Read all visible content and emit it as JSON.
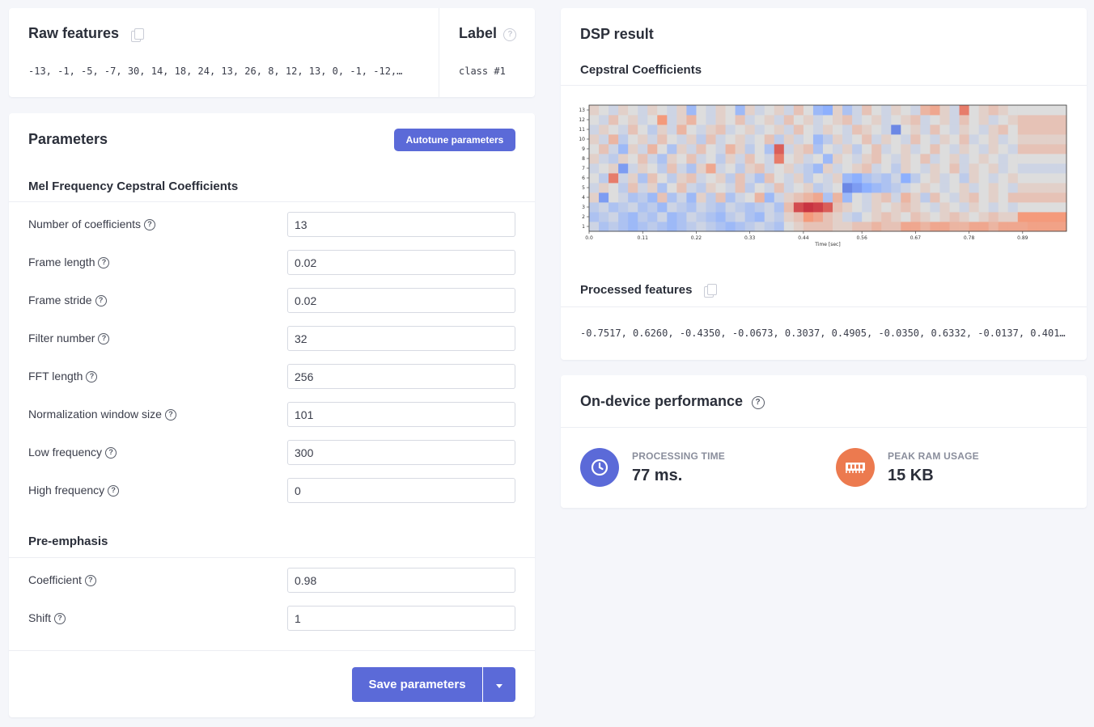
{
  "raw_features": {
    "title": "Raw features",
    "values": "-13, -1, -5, -7, 30, 14, 18, 24, 13, 26, 8, 12, 13, 0, -1, -12,…"
  },
  "label": {
    "title": "Label",
    "value": "class #1"
  },
  "parameters": {
    "title": "Parameters",
    "autotune_label": "Autotune parameters",
    "mfcc_section": "Mel Frequency Cepstral Coefficients",
    "mfcc_fields": [
      {
        "label": "Number of coefficients",
        "value": "13"
      },
      {
        "label": "Frame length",
        "value": "0.02"
      },
      {
        "label": "Frame stride",
        "value": "0.02"
      },
      {
        "label": "Filter number",
        "value": "32"
      },
      {
        "label": "FFT length",
        "value": "256"
      },
      {
        "label": "Normalization window size",
        "value": "101"
      },
      {
        "label": "Low frequency",
        "value": "300"
      },
      {
        "label": "High frequency",
        "value": "0"
      }
    ],
    "preemph_section": "Pre-emphasis",
    "preemph_fields": [
      {
        "label": "Coefficient",
        "value": "0.98"
      },
      {
        "label": "Shift",
        "value": "1"
      }
    ],
    "save_label": "Save parameters"
  },
  "dsp": {
    "title": "DSP result",
    "chart_title": "Cepstral Coefficients",
    "processed_title": "Processed features",
    "processed_values": "-0.7517, 0.6260, -0.4350, -0.0673, 0.3037, 0.4905, -0.0350, 0.6332, -0.0137, 0.401…"
  },
  "performance": {
    "title": "On-device performance",
    "processing_label": "PROCESSING TIME",
    "processing_value": "77 ms.",
    "ram_label": "PEAK RAM USAGE",
    "ram_value": "15 KB",
    "processing_color": "#5b6ad8",
    "ram_color": "#ec7a4f"
  },
  "chart_data": {
    "type": "heatmap",
    "title": "",
    "xlabel": "Time [sec]",
    "ylabel": "",
    "x_ticks": [
      "0.0",
      "0.11",
      "0.22",
      "0.33",
      "0.44",
      "0.56",
      "0.67",
      "0.78",
      "0.89"
    ],
    "y_ticks": [
      "1",
      "2",
      "3",
      "4",
      "5",
      "6",
      "7",
      "8",
      "9",
      "10",
      "11",
      "12",
      "13"
    ],
    "colormap": "coolwarm",
    "rows": 13,
    "cols": 49,
    "ylim": [
      0.5,
      13.5
    ],
    "values_description_free": true,
    "values": [
      [
        0.45,
        0.35,
        0.4,
        0.35,
        0.3,
        0.35,
        0.4,
        0.35,
        0.3,
        0.35,
        0.4,
        0.45,
        0.4,
        0.35,
        0.3,
        0.35,
        0.4,
        0.45,
        0.4,
        0.35,
        0.5,
        0.55,
        0.6,
        0.6,
        0.6,
        0.55,
        0.55,
        0.6,
        0.6,
        0.65,
        0.6,
        0.6,
        0.7,
        0.7,
        0.65,
        0.7,
        0.7,
        0.65,
        0.65,
        0.7,
        0.7,
        0.65,
        0.7,
        0.7,
        0.7,
        0.72,
        0.72,
        0.72,
        0.72
      ],
      [
        0.35,
        0.4,
        0.45,
        0.35,
        0.3,
        0.4,
        0.35,
        0.45,
        0.3,
        0.35,
        0.45,
        0.4,
        0.35,
        0.3,
        0.4,
        0.45,
        0.35,
        0.3,
        0.45,
        0.4,
        0.55,
        0.6,
        0.75,
        0.7,
        0.6,
        0.55,
        0.45,
        0.4,
        0.5,
        0.55,
        0.6,
        0.55,
        0.5,
        0.6,
        0.55,
        0.5,
        0.55,
        0.6,
        0.55,
        0.5,
        0.55,
        0.6,
        0.55,
        0.55,
        0.75,
        0.75,
        0.75,
        0.75,
        0.75
      ],
      [
        0.4,
        0.45,
        0.35,
        0.4,
        0.45,
        0.35,
        0.4,
        0.3,
        0.45,
        0.4,
        0.35,
        0.45,
        0.4,
        0.35,
        0.45,
        0.4,
        0.35,
        0.4,
        0.45,
        0.35,
        0.62,
        0.88,
        0.92,
        0.9,
        0.85,
        0.6,
        0.55,
        0.5,
        0.45,
        0.55,
        0.5,
        0.55,
        0.6,
        0.55,
        0.5,
        0.45,
        0.55,
        0.5,
        0.45,
        0.55,
        0.5,
        0.45,
        0.5,
        0.45,
        0.5,
        0.5,
        0.5,
        0.5,
        0.5
      ],
      [
        0.55,
        0.2,
        0.5,
        0.45,
        0.35,
        0.4,
        0.3,
        0.6,
        0.35,
        0.45,
        0.3,
        0.55,
        0.4,
        0.6,
        0.35,
        0.45,
        0.5,
        0.65,
        0.3,
        0.45,
        0.55,
        0.6,
        0.65,
        0.7,
        0.35,
        0.65,
        0.3,
        0.5,
        0.45,
        0.55,
        0.6,
        0.45,
        0.65,
        0.55,
        0.4,
        0.6,
        0.5,
        0.45,
        0.55,
        0.6,
        0.5,
        0.55,
        0.5,
        0.6,
        0.6,
        0.6,
        0.6,
        0.6,
        0.6
      ],
      [
        0.45,
        0.55,
        0.5,
        0.4,
        0.6,
        0.45,
        0.55,
        0.35,
        0.5,
        0.6,
        0.45,
        0.4,
        0.55,
        0.5,
        0.45,
        0.6,
        0.4,
        0.5,
        0.45,
        0.6,
        0.45,
        0.5,
        0.55,
        0.4,
        0.45,
        0.5,
        0.15,
        0.2,
        0.25,
        0.3,
        0.35,
        0.4,
        0.45,
        0.5,
        0.55,
        0.5,
        0.45,
        0.5,
        0.55,
        0.45,
        0.5,
        0.55,
        0.5,
        0.45,
        0.55,
        0.55,
        0.55,
        0.55,
        0.55
      ],
      [
        0.5,
        0.4,
        0.8,
        0.45,
        0.55,
        0.35,
        0.6,
        0.5,
        0.4,
        0.55,
        0.6,
        0.45,
        0.5,
        0.55,
        0.4,
        0.6,
        0.45,
        0.35,
        0.6,
        0.5,
        0.45,
        0.55,
        0.4,
        0.5,
        0.45,
        0.55,
        0.3,
        0.25,
        0.35,
        0.4,
        0.35,
        0.45,
        0.25,
        0.4,
        0.5,
        0.55,
        0.45,
        0.5,
        0.4,
        0.55,
        0.5,
        0.45,
        0.5,
        0.55,
        0.5,
        0.5,
        0.5,
        0.5,
        0.5
      ],
      [
        0.45,
        0.5,
        0.55,
        0.2,
        0.45,
        0.55,
        0.5,
        0.4,
        0.6,
        0.45,
        0.35,
        0.55,
        0.7,
        0.45,
        0.5,
        0.4,
        0.55,
        0.6,
        0.45,
        0.5,
        0.55,
        0.45,
        0.4,
        0.3,
        0.55,
        0.45,
        0.5,
        0.55,
        0.6,
        0.45,
        0.5,
        0.4,
        0.55,
        0.5,
        0.45,
        0.55,
        0.5,
        0.6,
        0.45,
        0.55,
        0.5,
        0.55,
        0.45,
        0.5,
        0.45,
        0.45,
        0.45,
        0.45,
        0.45
      ],
      [
        0.55,
        0.45,
        0.4,
        0.55,
        0.5,
        0.6,
        0.45,
        0.35,
        0.55,
        0.5,
        0.6,
        0.45,
        0.5,
        0.4,
        0.55,
        0.45,
        0.6,
        0.5,
        0.45,
        0.8,
        0.5,
        0.55,
        0.45,
        0.5,
        0.3,
        0.55,
        0.5,
        0.45,
        0.55,
        0.6,
        0.5,
        0.45,
        0.55,
        0.5,
        0.6,
        0.45,
        0.5,
        0.55,
        0.45,
        0.5,
        0.55,
        0.5,
        0.45,
        0.5,
        0.5,
        0.5,
        0.5,
        0.5,
        0.5
      ],
      [
        0.5,
        0.6,
        0.45,
        0.3,
        0.55,
        0.45,
        0.65,
        0.5,
        0.35,
        0.55,
        0.45,
        0.6,
        0.5,
        0.45,
        0.65,
        0.55,
        0.4,
        0.5,
        0.35,
        0.85,
        0.45,
        0.55,
        0.6,
        0.35,
        0.5,
        0.45,
        0.55,
        0.4,
        0.5,
        0.6,
        0.45,
        0.5,
        0.55,
        0.45,
        0.5,
        0.6,
        0.5,
        0.45,
        0.55,
        0.5,
        0.45,
        0.55,
        0.5,
        0.45,
        0.6,
        0.6,
        0.6,
        0.6,
        0.6
      ],
      [
        0.55,
        0.45,
        0.65,
        0.4,
        0.5,
        0.55,
        0.45,
        0.6,
        0.5,
        0.45,
        0.55,
        0.4,
        0.6,
        0.45,
        0.5,
        0.55,
        0.45,
        0.5,
        0.6,
        0.4,
        0.55,
        0.45,
        0.5,
        0.3,
        0.4,
        0.55,
        0.45,
        0.5,
        0.6,
        0.45,
        0.55,
        0.5,
        0.45,
        0.6,
        0.5,
        0.45,
        0.55,
        0.5,
        0.6,
        0.45,
        0.5,
        0.55,
        0.45,
        0.5,
        0.55,
        0.55,
        0.55,
        0.55,
        0.55
      ],
      [
        0.45,
        0.55,
        0.5,
        0.45,
        0.6,
        0.5,
        0.4,
        0.55,
        0.45,
        0.65,
        0.5,
        0.45,
        0.55,
        0.6,
        0.45,
        0.5,
        0.55,
        0.45,
        0.5,
        0.55,
        0.45,
        0.6,
        0.5,
        0.45,
        0.55,
        0.5,
        0.45,
        0.6,
        0.55,
        0.5,
        0.45,
        0.15,
        0.5,
        0.55,
        0.45,
        0.6,
        0.5,
        0.45,
        0.55,
        0.5,
        0.45,
        0.55,
        0.6,
        0.5,
        0.6,
        0.6,
        0.6,
        0.6,
        0.6
      ],
      [
        0.5,
        0.45,
        0.6,
        0.5,
        0.55,
        0.45,
        0.5,
        0.75,
        0.45,
        0.55,
        0.65,
        0.5,
        0.45,
        0.55,
        0.5,
        0.6,
        0.45,
        0.5,
        0.55,
        0.45,
        0.6,
        0.5,
        0.55,
        0.45,
        0.5,
        0.55,
        0.6,
        0.45,
        0.5,
        0.55,
        0.45,
        0.5,
        0.55,
        0.6,
        0.45,
        0.5,
        0.55,
        0.45,
        0.6,
        0.5,
        0.55,
        0.45,
        0.5,
        0.55,
        0.6,
        0.6,
        0.6,
        0.6,
        0.6
      ],
      [
        0.55,
        0.5,
        0.45,
        0.55,
        0.5,
        0.45,
        0.55,
        0.5,
        0.45,
        0.55,
        0.3,
        0.5,
        0.45,
        0.55,
        0.5,
        0.3,
        0.55,
        0.45,
        0.5,
        0.55,
        0.45,
        0.6,
        0.5,
        0.3,
        0.25,
        0.55,
        0.35,
        0.45,
        0.6,
        0.5,
        0.45,
        0.55,
        0.5,
        0.45,
        0.65,
        0.7,
        0.55,
        0.45,
        0.8,
        0.5,
        0.55,
        0.6,
        0.55,
        0.5,
        0.5,
        0.5,
        0.5,
        0.5,
        0.5
      ]
    ]
  }
}
